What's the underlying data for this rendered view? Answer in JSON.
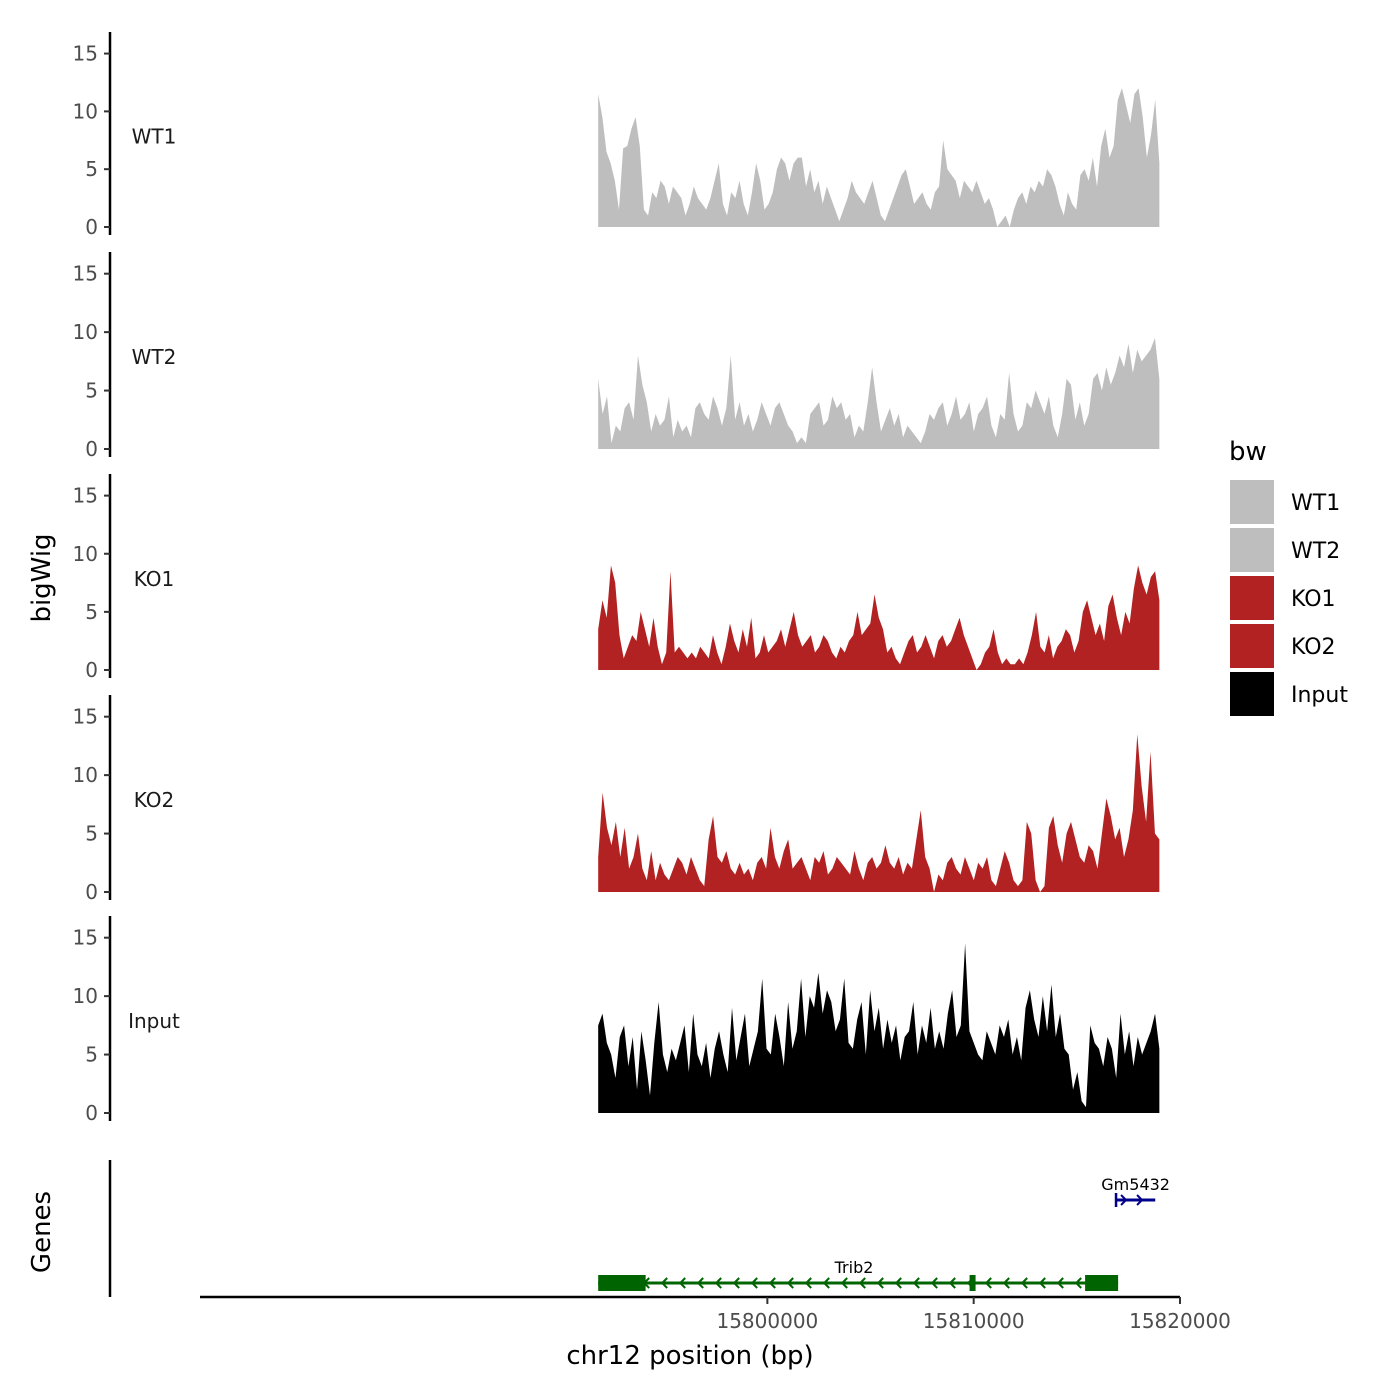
{
  "chart_data": {
    "type": "area",
    "ylabel": "bigWig",
    "xlabel": "chr12 position (bp)",
    "ylim": [
      0,
      16
    ],
    "yticks": [
      0,
      5,
      10,
      15
    ],
    "xlim": [
      15772500,
      15820000
    ],
    "xticks": [
      15800000,
      15810000,
      15820000
    ],
    "xtick_labels": [
      "15800000",
      "15810000",
      "15820000"
    ],
    "region": [
      15791800,
      15819000
    ],
    "legend": {
      "title": "bw",
      "entries": [
        {
          "label": "WT1",
          "color": "#bebebe"
        },
        {
          "label": "WT2",
          "color": "#bebebe"
        },
        {
          "label": "KO1",
          "color": "#b22222"
        },
        {
          "label": "KO2",
          "color": "#b22222"
        },
        {
          "label": "Input",
          "color": "#000000"
        }
      ]
    },
    "series": [
      {
        "name": "WT1",
        "color": "#bebebe",
        "values": [
          11.5,
          9.5,
          6.5,
          5.5,
          4.0,
          1.5,
          6.8,
          7.0,
          8.5,
          9.5,
          7.0,
          1.5,
          1.0,
          3.0,
          2.5,
          4.0,
          3.5,
          2.0,
          3.5,
          3.0,
          2.5,
          1.0,
          2.0,
          3.5,
          2.5,
          2.0,
          1.5,
          2.5,
          4.0,
          5.5,
          2.0,
          1.0,
          3.0,
          2.5,
          4.0,
          2.0,
          1.0,
          3.0,
          5.5,
          4.0,
          1.5,
          2.0,
          3.0,
          5.0,
          6.0,
          5.5,
          4.0,
          5.5,
          6.0,
          6.0,
          3.5,
          5.0,
          3.0,
          4.0,
          2.0,
          3.5,
          2.5,
          1.5,
          0.5,
          1.5,
          2.5,
          4.0,
          3.0,
          2.5,
          2.0,
          3.0,
          4.0,
          2.5,
          1.0,
          0.5,
          1.5,
          2.5,
          3.5,
          4.5,
          5.0,
          3.5,
          2.0,
          2.5,
          3.0,
          2.0,
          1.5,
          3.0,
          3.5,
          7.5,
          5.0,
          4.5,
          4.0,
          2.5,
          4.0,
          3.5,
          3.0,
          4.0,
          3.0,
          2.0,
          2.5,
          1.5,
          0.0,
          0.5,
          1.0,
          0.0,
          1.5,
          2.5,
          3.0,
          2.0,
          3.5,
          3.0,
          4.0,
          3.5,
          5.0,
          4.5,
          3.5,
          2.0,
          1.0,
          3.0,
          2.0,
          1.5,
          4.5,
          5.0,
          4.0,
          6.0,
          3.5,
          7.0,
          8.5,
          6.0,
          7.0,
          11.0,
          12.0,
          10.5,
          9.0,
          11.5,
          12.0,
          9.5,
          6.0,
          8.0,
          11.0,
          5.5
        ]
      },
      {
        "name": "WT2",
        "color": "#bebebe",
        "values": [
          6.0,
          3.0,
          4.5,
          0.5,
          2.0,
          1.5,
          3.5,
          4.0,
          2.5,
          8.0,
          5.5,
          4.0,
          1.5,
          3.0,
          2.0,
          2.5,
          4.5,
          1.0,
          2.5,
          1.5,
          2.0,
          1.0,
          3.5,
          4.0,
          3.0,
          2.5,
          4.5,
          3.5,
          2.0,
          3.5,
          8.0,
          2.5,
          4.0,
          2.0,
          3.0,
          1.5,
          2.5,
          4.0,
          3.0,
          2.0,
          3.5,
          4.0,
          3.0,
          2.0,
          1.5,
          0.5,
          1.0,
          0.5,
          3.0,
          3.5,
          4.0,
          2.0,
          2.5,
          4.5,
          3.5,
          4.0,
          2.5,
          3.0,
          1.0,
          2.0,
          1.5,
          4.0,
          7.0,
          4.0,
          1.5,
          2.5,
          3.5,
          2.0,
          3.0,
          1.0,
          2.0,
          1.5,
          1.0,
          0.5,
          1.5,
          3.0,
          2.5,
          3.5,
          4.0,
          2.0,
          3.0,
          4.5,
          2.5,
          3.0,
          4.0,
          1.5,
          3.0,
          3.5,
          4.5,
          2.0,
          1.0,
          3.0,
          2.5,
          6.5,
          3.0,
          1.5,
          2.0,
          4.0,
          3.5,
          5.0,
          4.0,
          3.0,
          4.5,
          2.0,
          1.0,
          3.0,
          6.0,
          5.5,
          2.5,
          4.0,
          2.0,
          3.0,
          6.0,
          6.5,
          5.0,
          7.0,
          5.5,
          6.5,
          8.0,
          7.0,
          9.0,
          6.5,
          8.5,
          7.5,
          8.0,
          8.5,
          9.5,
          6.0
        ]
      },
      {
        "name": "KO1",
        "color": "#b22222",
        "values": [
          3.5,
          6.0,
          4.5,
          9.0,
          7.5,
          3.0,
          1.0,
          2.0,
          3.0,
          2.5,
          5.0,
          3.5,
          2.0,
          4.5,
          2.0,
          0.5,
          1.5,
          8.5,
          1.5,
          2.0,
          1.5,
          1.0,
          1.5,
          1.0,
          2.0,
          1.5,
          1.0,
          3.0,
          1.5,
          0.5,
          2.0,
          4.0,
          2.5,
          1.5,
          3.5,
          2.0,
          4.5,
          1.0,
          1.5,
          3.0,
          1.5,
          2.0,
          2.5,
          3.5,
          2.0,
          3.5,
          5.0,
          3.0,
          2.0,
          2.5,
          3.0,
          1.5,
          2.0,
          3.0,
          2.5,
          1.5,
          1.0,
          2.0,
          1.5,
          2.5,
          3.0,
          5.0,
          3.0,
          3.5,
          4.0,
          6.5,
          4.5,
          3.5,
          1.5,
          2.0,
          1.0,
          0.5,
          1.5,
          2.5,
          3.0,
          1.5,
          2.0,
          3.0,
          2.0,
          1.0,
          2.5,
          3.0,
          2.0,
          2.5,
          3.5,
          4.5,
          3.0,
          2.0,
          1.0,
          0.0,
          0.5,
          1.5,
          2.0,
          3.5,
          1.5,
          0.5,
          1.0,
          0.5,
          0.5,
          1.0,
          0.5,
          1.5,
          3.0,
          5.0,
          2.0,
          1.5,
          3.0,
          1.0,
          2.0,
          2.5,
          3.5,
          3.0,
          1.5,
          2.5,
          5.0,
          6.0,
          4.5,
          3.0,
          4.0,
          2.5,
          5.5,
          6.5,
          4.5,
          3.0,
          5.0,
          4.0,
          7.0,
          9.0,
          7.5,
          6.5,
          8.0,
          8.5,
          6.0
        ]
      },
      {
        "name": "KO2",
        "color": "#b22222",
        "values": [
          3.0,
          8.5,
          5.5,
          4.0,
          6.0,
          3.0,
          5.5,
          2.0,
          3.0,
          5.0,
          2.0,
          1.0,
          3.5,
          1.0,
          2.5,
          1.5,
          1.0,
          2.0,
          3.0,
          2.5,
          1.5,
          3.0,
          2.0,
          1.0,
          0.5,
          4.5,
          6.5,
          3.0,
          2.5,
          3.5,
          2.0,
          1.5,
          2.5,
          1.5,
          2.0,
          1.0,
          2.5,
          3.0,
          2.0,
          5.5,
          3.0,
          2.0,
          3.5,
          4.5,
          2.0,
          2.5,
          3.0,
          2.0,
          1.0,
          3.0,
          2.5,
          3.5,
          1.5,
          2.0,
          3.0,
          2.5,
          2.0,
          1.5,
          3.5,
          2.0,
          1.0,
          2.5,
          3.0,
          2.0,
          2.5,
          4.0,
          2.5,
          2.0,
          3.0,
          1.5,
          2.5,
          2.0,
          4.5,
          7.0,
          3.0,
          2.0,
          0.0,
          1.5,
          1.0,
          2.5,
          3.0,
          2.0,
          1.5,
          3.0,
          2.0,
          1.0,
          2.5,
          2.0,
          3.0,
          1.0,
          0.5,
          2.0,
          3.5,
          2.5,
          1.0,
          0.5,
          1.0,
          6.0,
          5.0,
          1.0,
          0.0,
          0.5,
          5.5,
          6.5,
          4.0,
          2.5,
          5.0,
          6.0,
          4.5,
          3.0,
          2.5,
          4.0,
          3.5,
          2.0,
          5.0,
          8.0,
          6.5,
          4.5,
          5.5,
          3.0,
          4.5,
          7.0,
          13.5,
          9.0,
          6.0,
          12.0,
          5.0,
          4.5
        ]
      },
      {
        "name": "Input",
        "color": "#000000",
        "values": [
          7.5,
          8.5,
          6.0,
          5.0,
          3.0,
          6.5,
          7.5,
          4.0,
          6.5,
          2.0,
          7.0,
          4.5,
          1.5,
          6.0,
          9.5,
          5.0,
          3.5,
          5.5,
          4.5,
          6.0,
          7.5,
          3.5,
          8.5,
          5.0,
          4.0,
          6.0,
          3.0,
          5.5,
          7.0,
          5.0,
          3.5,
          9.0,
          4.5,
          6.5,
          8.5,
          4.0,
          5.5,
          7.0,
          11.5,
          5.5,
          5.0,
          8.5,
          6.5,
          4.0,
          9.5,
          5.5,
          7.0,
          11.5,
          6.5,
          10.0,
          9.0,
          12.0,
          8.5,
          10.5,
          9.5,
          7.0,
          8.0,
          11.5,
          6.0,
          5.5,
          8.0,
          9.5,
          5.0,
          10.5,
          7.0,
          9.0,
          5.5,
          8.0,
          6.0,
          7.5,
          4.5,
          6.5,
          7.0,
          9.5,
          5.0,
          7.5,
          6.0,
          9.0,
          5.5,
          7.0,
          5.5,
          8.5,
          10.5,
          6.5,
          7.5,
          14.5,
          7.0,
          6.0,
          5.0,
          4.5,
          7.0,
          6.0,
          5.0,
          7.5,
          6.5,
          8.0,
          5.0,
          6.5,
          4.5,
          9.0,
          10.5,
          8.0,
          6.5,
          10.0,
          7.0,
          11.0,
          6.5,
          8.5,
          5.5,
          5.0,
          2.0,
          3.5,
          1.0,
          0.5,
          7.5,
          6.0,
          5.5,
          4.0,
          6.5,
          5.5,
          3.0,
          8.5,
          5.0,
          7.0,
          4.0,
          6.5,
          5.0,
          6.0,
          7.0,
          8.5,
          5.5
        ]
      }
    ],
    "genes": [
      {
        "name": "Trib2",
        "start": 15791800,
        "end": 15817000,
        "strand": "-",
        "color": "#006400",
        "exons": [
          [
            15791800,
            15794100
          ],
          [
            15809800,
            15810050
          ],
          [
            15815400,
            15817000
          ]
        ]
      },
      {
        "name": "Gm5432",
        "start": 15816900,
        "end": 15818800,
        "strand": "+",
        "color": "#00008b",
        "exons": []
      }
    ],
    "genes_label": "Genes"
  }
}
